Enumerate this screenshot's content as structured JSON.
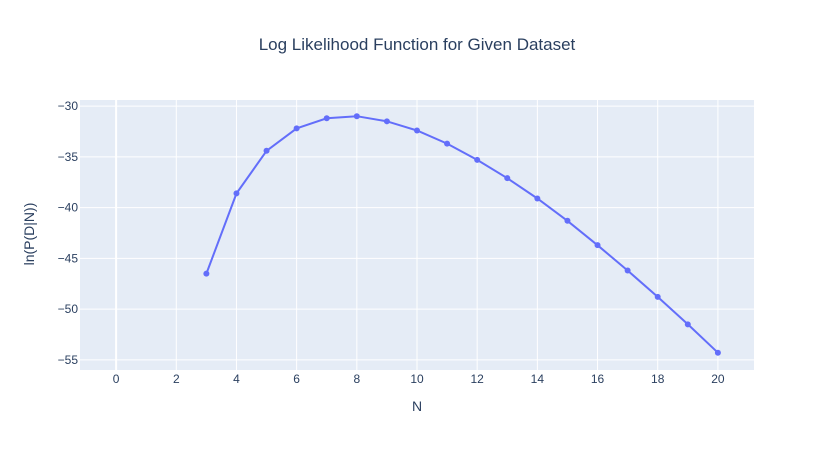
{
  "chart_data": {
    "type": "line",
    "title": "Log Likelihood Function for Given Dataset",
    "xlabel": "N",
    "ylabel": "ln(P(D|N))",
    "xlim": [
      -1.2,
      21.2
    ],
    "ylim": [
      -56.0,
      -29.4
    ],
    "xticks": [
      0,
      2,
      4,
      6,
      8,
      10,
      12,
      14,
      16,
      18,
      20
    ],
    "yticks": [
      -30,
      -35,
      -40,
      -45,
      -50,
      -55
    ],
    "xtick_labels": [
      "0",
      "2",
      "4",
      "6",
      "8",
      "10",
      "12",
      "14",
      "16",
      "18",
      "20"
    ],
    "ytick_labels": [
      "−30",
      "−35",
      "−40",
      "−45",
      "−50",
      "−55"
    ],
    "grid": true,
    "mode": "lines+markers",
    "series": [
      {
        "x": [
          3,
          4,
          5,
          6,
          7,
          8,
          9,
          10,
          11,
          12,
          13,
          14,
          15,
          16,
          17,
          18,
          19,
          20
        ],
        "y": [
          -46.5,
          -38.6,
          -34.4,
          -32.2,
          -31.2,
          -31.0,
          -31.5,
          -32.4,
          -33.7,
          -35.3,
          -37.1,
          -39.1,
          -41.3,
          -43.7,
          -46.2,
          -48.8,
          -51.5,
          -54.3
        ]
      }
    ],
    "colors": {
      "line": "#636efa",
      "plot_bg": "#e5ecf6",
      "grid": "#ffffff",
      "text": "#2a3f5f"
    }
  }
}
